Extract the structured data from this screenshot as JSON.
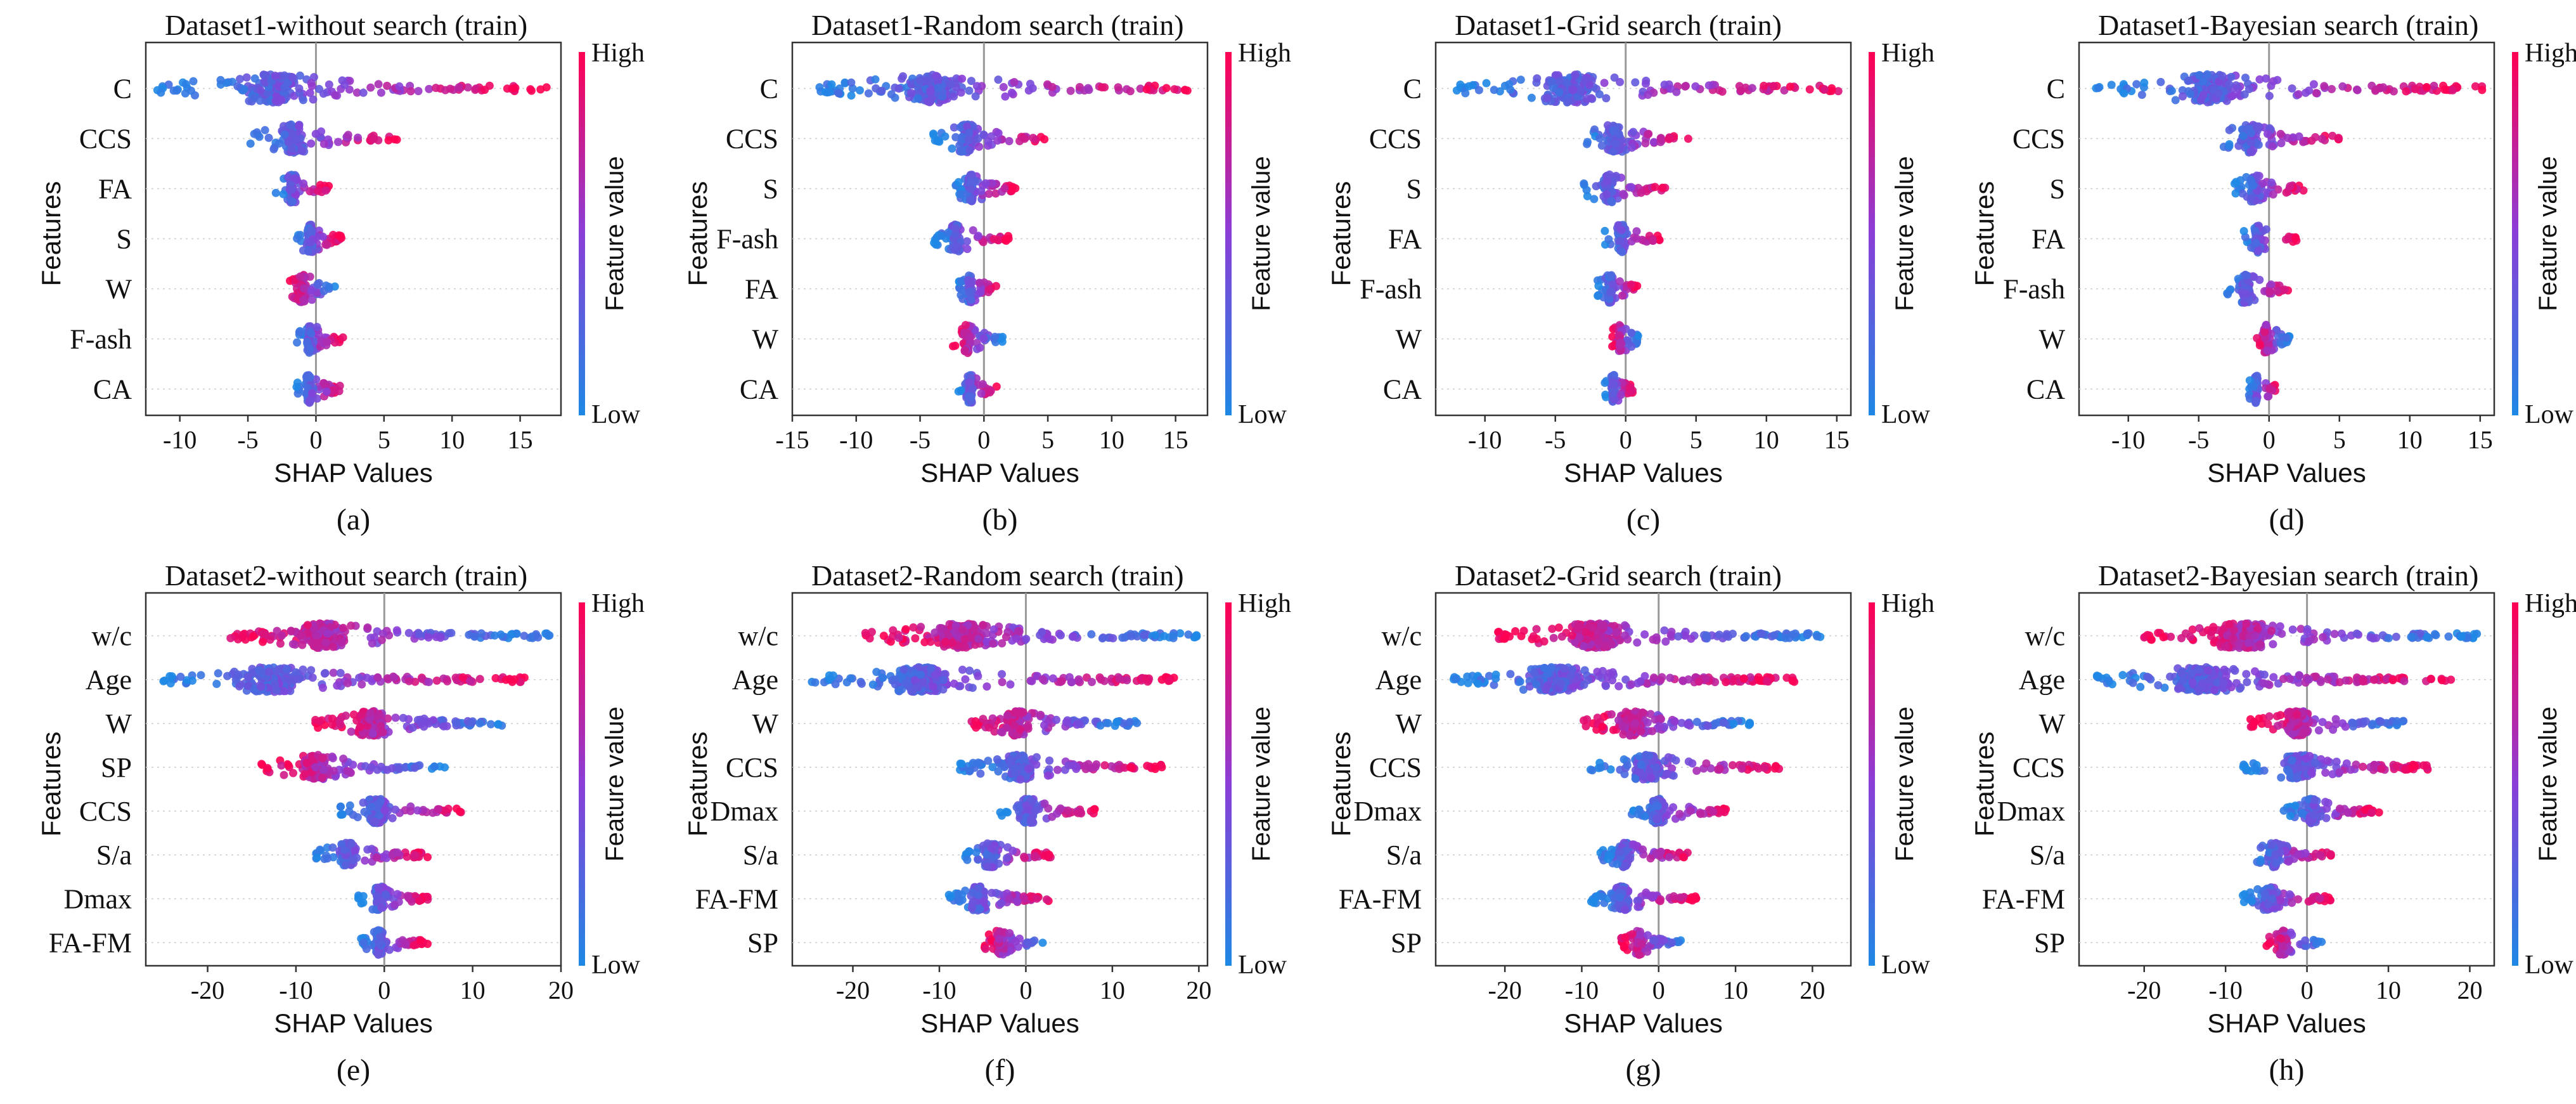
{
  "colors": {
    "high": "#ff0052",
    "mid": "#8a3ed8",
    "low": "#1e88e5",
    "zero_line": "#999999",
    "frame": "#333333"
  },
  "colorbar": {
    "high_label": "High",
    "low_label": "Low",
    "title": "Feature value"
  },
  "chart_data": [
    {
      "type": "scatter",
      "panel": "(a)",
      "title": "Dataset1-without search (train)",
      "xlabel": "SHAP Values",
      "ylabel": "Features",
      "xlim": [
        -12.5,
        18
      ],
      "xticks": [
        -10,
        -5,
        0,
        5,
        10,
        15
      ],
      "features": [
        "C",
        "CCS",
        "FA",
        "S",
        "W",
        "F-ash",
        "CA"
      ],
      "shap_ranges": [
        [
          -12,
          17
        ],
        [
          -5,
          6
        ],
        [
          -3,
          1
        ],
        [
          -1.5,
          2
        ],
        [
          -2,
          1.5
        ],
        [
          -1.5,
          2
        ],
        [
          -1.5,
          2
        ]
      ]
    },
    {
      "type": "scatter",
      "panel": "(b)",
      "title": "Dataset1-Random search (train)",
      "xlabel": "SHAP Values",
      "ylabel": "Features",
      "xlim": [
        -15,
        17.5
      ],
      "xticks": [
        -15,
        -10,
        -5,
        0,
        5,
        10,
        15
      ],
      "features": [
        "C",
        "CCS",
        "S",
        "F-ash",
        "FA",
        "W",
        "CA"
      ],
      "shap_ranges": [
        [
          -13,
          17
        ],
        [
          -4,
          5
        ],
        [
          -2.5,
          2.5
        ],
        [
          -4,
          2
        ],
        [
          -2,
          1
        ],
        [
          -2.5,
          1.5
        ],
        [
          -2,
          1
        ]
      ]
    },
    {
      "type": "scatter",
      "panel": "(c)",
      "title": "Dataset1-Grid search (train)",
      "xlabel": "SHAP Values",
      "ylabel": "Features",
      "xlim": [
        -13.5,
        16
      ],
      "xticks": [
        -10,
        -5,
        0,
        5,
        10,
        15
      ],
      "features": [
        "C",
        "CCS",
        "S",
        "FA",
        "F-ash",
        "W",
        "CA"
      ],
      "shap_ranges": [
        [
          -12,
          15.5
        ],
        [
          -3,
          4.5
        ],
        [
          -3,
          3
        ],
        [
          -1.5,
          2.5
        ],
        [
          -2,
          1
        ],
        [
          -1,
          1
        ],
        [
          -1.5,
          0.5
        ]
      ]
    },
    {
      "type": "scatter",
      "panel": "(d)",
      "title": "Dataset1-Bayesian search (train)",
      "xlabel": "SHAP Values",
      "ylabel": "Features",
      "xlim": [
        -13.5,
        16
      ],
      "xticks": [
        -10,
        -5,
        0,
        5,
        10,
        15
      ],
      "features": [
        "C",
        "CCS",
        "S",
        "FA",
        "F-ash",
        "W",
        "CA"
      ],
      "shap_ranges": [
        [
          -12.5,
          15.5
        ],
        [
          -4,
          5
        ],
        [
          -2.5,
          2.5
        ],
        [
          -2,
          2
        ],
        [
          -3,
          1.5
        ],
        [
          -1,
          1.5
        ],
        [
          -1.5,
          0.5
        ]
      ]
    },
    {
      "type": "scatter",
      "panel": "(e)",
      "title": "Dataset2-without search (train)",
      "xlabel": "SHAP Values",
      "ylabel": "Features",
      "xlim": [
        -27,
        20
      ],
      "xticks": [
        -20,
        -10,
        0,
        10,
        20
      ],
      "features": [
        "w/c",
        "Age",
        "W",
        "SP",
        "CCS",
        "S/a",
        "Dmax",
        "FA-FM"
      ],
      "shap_ranges": [
        [
          -18,
          19
        ],
        [
          -25,
          16
        ],
        [
          -8,
          14
        ],
        [
          -14,
          7
        ],
        [
          -5,
          9
        ],
        [
          -8,
          5
        ],
        [
          -3,
          5
        ],
        [
          -3,
          5
        ]
      ]
    },
    {
      "type": "scatter",
      "panel": "(f)",
      "title": "Dataset2-Random search (train)",
      "xlabel": "SHAP Values",
      "ylabel": "Features",
      "xlim": [
        -27,
        21
      ],
      "xticks": [
        -20,
        -10,
        0,
        10,
        20
      ],
      "features": [
        "w/c",
        "Age",
        "W",
        "CCS",
        "Dmax",
        "S/a",
        "FA-FM",
        "SP"
      ],
      "shap_ranges": [
        [
          -19,
          20
        ],
        [
          -25,
          18
        ],
        [
          -7,
          13
        ],
        [
          -8,
          16
        ],
        [
          -3,
          8
        ],
        [
          -7,
          3
        ],
        [
          -9,
          3
        ],
        [
          -5,
          2
        ]
      ]
    },
    {
      "type": "scatter",
      "panel": "(g)",
      "title": "Dataset2-Grid search (train)",
      "xlabel": "SHAP Values",
      "ylabel": "Features",
      "xlim": [
        -29,
        25
      ],
      "xticks": [
        -20,
        -10,
        0,
        10,
        20
      ],
      "features": [
        "w/c",
        "Age",
        "W",
        "CCS",
        "Dmax",
        "S/a",
        "FA-FM",
        "SP"
      ],
      "shap_ranges": [
        [
          -21,
          22
        ],
        [
          -27,
          18
        ],
        [
          -10,
          12
        ],
        [
          -9,
          16
        ],
        [
          -4,
          9
        ],
        [
          -8,
          4
        ],
        [
          -9,
          5
        ],
        [
          -5,
          3
        ]
      ]
    },
    {
      "type": "scatter",
      "panel": "(h)",
      "title": "Dataset2-Bayesian search (train)",
      "xlabel": "SHAP Values",
      "ylabel": "Features",
      "xlim": [
        -28,
        23
      ],
      "xticks": [
        -20,
        -10,
        0,
        10,
        20
      ],
      "features": [
        "w/c",
        "Age",
        "W",
        "CCS",
        "Dmax",
        "S/a",
        "FA-FM",
        "SP"
      ],
      "shap_ranges": [
        [
          -20,
          21
        ],
        [
          -26,
          18
        ],
        [
          -7,
          13
        ],
        [
          -8,
          15
        ],
        [
          -3,
          9
        ],
        [
          -7,
          3
        ],
        [
          -8,
          3
        ],
        [
          -5,
          2
        ]
      ]
    }
  ]
}
